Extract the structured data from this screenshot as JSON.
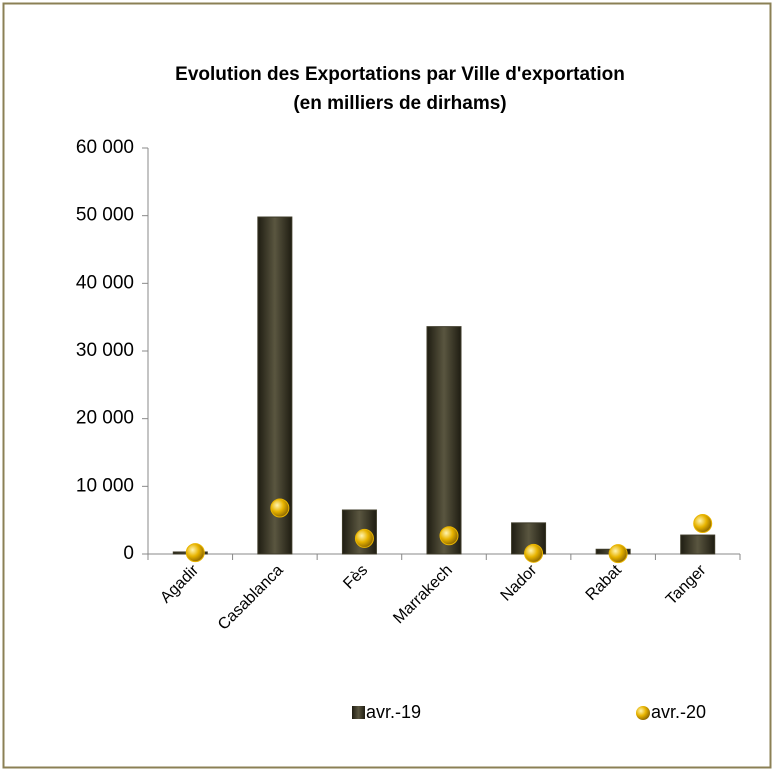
{
  "chart_data": {
    "type": "bar",
    "title": [
      "Evolution des Exportations par Ville d'exportation",
      "(en milliers de dirhams)"
    ],
    "categories": [
      "Agadir",
      "Casablanca",
      "Fès",
      "Marrakech",
      "Nador",
      "Rabat",
      "Tanger"
    ],
    "series": [
      {
        "name": "avr.-19",
        "color": "#3d3a28",
        "marker": "bar",
        "values": [
          300,
          49800,
          6500,
          33600,
          4600,
          700,
          2800
        ]
      },
      {
        "name": "avr.-20",
        "color": "#e8b400",
        "marker": "dot",
        "values": [
          200,
          6800,
          2300,
          2700,
          100,
          50,
          4500
        ]
      }
    ],
    "ylim": [
      0,
      60000
    ],
    "yticks": [
      {
        "value": 0,
        "label": "0"
      },
      {
        "value": 10000,
        "label": "10 000"
      },
      {
        "value": 20000,
        "label": "20 000"
      },
      {
        "value": 30000,
        "label": "30 000"
      },
      {
        "value": 40000,
        "label": "40 000"
      },
      {
        "value": 50000,
        "label": "50 000"
      },
      {
        "value": 60000,
        "label": "60 000"
      }
    ],
    "grid": false,
    "legend": "bottom"
  }
}
